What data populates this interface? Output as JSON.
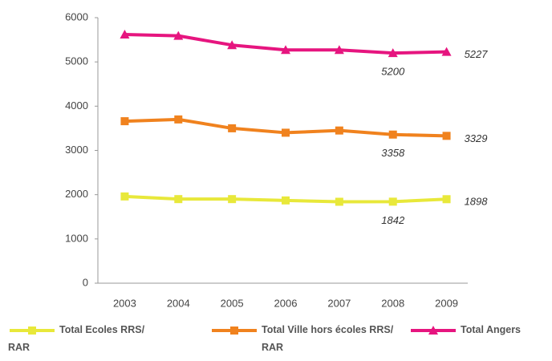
{
  "chart_data": {
    "type": "line",
    "categories": [
      "2003",
      "2004",
      "2005",
      "2006",
      "2007",
      "2008",
      "2009"
    ],
    "series": [
      {
        "name": "Total Ecoles RRS/ RAR",
        "color": "#e8e83a",
        "marker": "square",
        "values": [
          1960,
          1900,
          1900,
          1870,
          1840,
          1842,
          1898
        ]
      },
      {
        "name": "Total Ville hors écoles RRS/ RAR",
        "color": "#f0821e",
        "marker": "square",
        "values": [
          3660,
          3700,
          3500,
          3400,
          3450,
          3358,
          3329
        ]
      },
      {
        "name": "Total Angers",
        "color": "#e6157f",
        "marker": "triangle",
        "values": [
          5620,
          5590,
          5380,
          5270,
          5270,
          5200,
          5227
        ]
      }
    ],
    "ylim": [
      0,
      6000
    ],
    "yticks": [
      0,
      1000,
      2000,
      3000,
      4000,
      5000,
      6000
    ],
    "grid": false
  }
}
